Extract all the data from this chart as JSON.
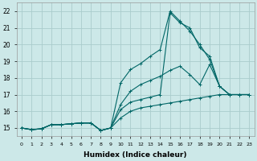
{
  "title": "",
  "xlabel": "Humidex (Indice chaleur)",
  "ylabel": "",
  "bg_color": "#cce8e8",
  "grid_color": "#aacccc",
  "line_color": "#006666",
  "xlim": [
    -0.5,
    23.5
  ],
  "ylim": [
    14.5,
    22.5
  ],
  "xticks": [
    0,
    1,
    2,
    3,
    4,
    5,
    6,
    7,
    8,
    9,
    10,
    11,
    12,
    13,
    14,
    15,
    16,
    17,
    18,
    19,
    20,
    21,
    22,
    23
  ],
  "yticks": [
    15,
    16,
    17,
    18,
    19,
    20,
    21,
    22
  ],
  "lines": [
    {
      "x": [
        0,
        1,
        2,
        3,
        4,
        5,
        6,
        7,
        8,
        9,
        10,
        11,
        12,
        13,
        14,
        15,
        16,
        17,
        18,
        19,
        20,
        21,
        22,
        23
      ],
      "y": [
        15.0,
        14.9,
        14.95,
        15.2,
        15.2,
        15.25,
        15.3,
        15.3,
        14.85,
        15.0,
        15.6,
        16.0,
        16.2,
        16.3,
        16.4,
        16.5,
        16.6,
        16.7,
        16.8,
        16.9,
        17.0,
        17.0,
        17.0,
        17.0
      ]
    },
    {
      "x": [
        0,
        1,
        2,
        3,
        4,
        5,
        6,
        7,
        8,
        9,
        10,
        11,
        12,
        13,
        14,
        15,
        16,
        17,
        18,
        19,
        20,
        21,
        22,
        23
      ],
      "y": [
        15.0,
        14.9,
        14.95,
        15.2,
        15.2,
        15.25,
        15.3,
        15.3,
        14.85,
        15.0,
        16.4,
        17.2,
        17.6,
        17.85,
        18.1,
        18.45,
        18.7,
        18.2,
        17.6,
        18.8,
        17.5,
        17.0,
        17.0,
        17.0
      ]
    },
    {
      "x": [
        0,
        1,
        2,
        3,
        4,
        5,
        6,
        7,
        8,
        9,
        10,
        11,
        12,
        13,
        14,
        15,
        16,
        17,
        18,
        19,
        20,
        21,
        22,
        23
      ],
      "y": [
        15.0,
        14.9,
        14.95,
        15.2,
        15.2,
        15.25,
        15.3,
        15.3,
        14.85,
        15.0,
        17.7,
        18.5,
        18.85,
        19.3,
        19.7,
        22.0,
        21.4,
        20.8,
        20.0,
        19.1,
        17.5,
        17.0,
        17.0,
        17.0
      ]
    },
    {
      "x": [
        0,
        1,
        2,
        3,
        4,
        5,
        6,
        7,
        8,
        9,
        10,
        11,
        12,
        13,
        14,
        15,
        16,
        17,
        18,
        19,
        20,
        21,
        22,
        23
      ],
      "y": [
        15.0,
        14.9,
        14.95,
        15.2,
        15.2,
        15.25,
        15.3,
        15.3,
        14.85,
        15.0,
        16.1,
        16.55,
        16.7,
        16.85,
        17.0,
        21.9,
        21.3,
        21.0,
        19.8,
        19.3,
        17.5,
        17.0,
        17.0,
        17.0
      ]
    }
  ]
}
